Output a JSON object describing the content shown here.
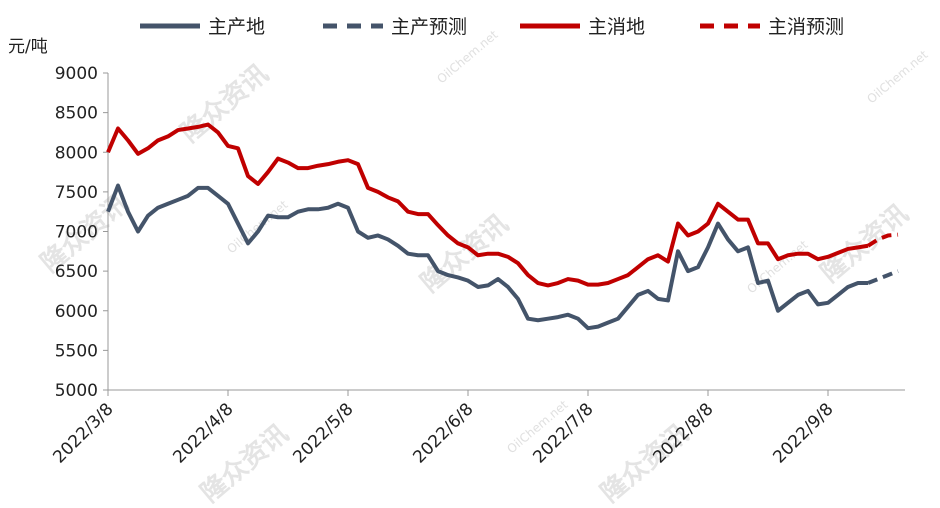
{
  "chart_data": {
    "type": "line",
    "y_label": "元/吨",
    "watermark": [
      "隆众资讯",
      "OilChem.net"
    ],
    "categories": [
      "2022/3/8",
      null,
      null,
      null,
      null,
      null,
      null,
      null,
      null,
      null,
      null,
      null,
      "2022/4/8",
      null,
      null,
      null,
      null,
      null,
      null,
      null,
      null,
      null,
      null,
      null,
      "2022/5/8",
      null,
      null,
      null,
      null,
      null,
      null,
      null,
      null,
      null,
      null,
      null,
      "2022/6/8",
      null,
      null,
      null,
      null,
      null,
      null,
      null,
      null,
      null,
      null,
      null,
      "2022/7/8",
      null,
      null,
      null,
      null,
      null,
      null,
      null,
      null,
      null,
      null,
      null,
      "2022/8/8",
      null,
      null,
      null,
      null,
      null,
      null,
      null,
      null,
      null,
      null,
      null,
      "2022/9/8",
      null,
      null,
      null,
      null,
      null,
      null,
      null
    ],
    "series": [
      {
        "name": "主产地",
        "color": "#44546a",
        "dashed": false,
        "values": [
          7250,
          7580,
          7250,
          7000,
          7200,
          7300,
          7350,
          7400,
          7450,
          7550,
          7550,
          7450,
          7350,
          7100,
          6850,
          7000,
          7200,
          7180,
          7180,
          7250,
          7280,
          7280,
          7300,
          7350,
          7300,
          7000,
          6920,
          6950,
          6900,
          6820,
          6720,
          6700,
          6700,
          6500,
          6450,
          6420,
          6380,
          6300,
          6320,
          6400,
          6300,
          6150,
          5900,
          5880,
          5900,
          5920,
          5950,
          5900,
          5780,
          5800,
          5850,
          5900,
          6050,
          6200,
          6250,
          6150,
          6130,
          6750,
          6500,
          6550,
          6800,
          7100,
          6900,
          6750,
          6800,
          6350,
          6380,
          6000,
          6100,
          6200,
          6250,
          6080,
          6100,
          6200,
          6300,
          6350,
          6350,
          null,
          null,
          null
        ]
      },
      {
        "name": "主产预测",
        "color": "#44546a",
        "dashed": true,
        "values": [
          null,
          null,
          null,
          null,
          null,
          null,
          null,
          null,
          null,
          null,
          null,
          null,
          null,
          null,
          null,
          null,
          null,
          null,
          null,
          null,
          null,
          null,
          null,
          null,
          null,
          null,
          null,
          null,
          null,
          null,
          null,
          null,
          null,
          null,
          null,
          null,
          null,
          null,
          null,
          null,
          null,
          null,
          null,
          null,
          null,
          null,
          null,
          null,
          null,
          null,
          null,
          null,
          null,
          null,
          null,
          null,
          null,
          null,
          null,
          null,
          null,
          null,
          null,
          null,
          null,
          null,
          null,
          null,
          null,
          null,
          null,
          null,
          null,
          null,
          null,
          null,
          6350,
          6400,
          6450,
          6500
        ]
      },
      {
        "name": "主消地",
        "color": "#c00000",
        "dashed": false,
        "values": [
          8000,
          8300,
          8150,
          7980,
          8050,
          8150,
          8200,
          8280,
          8300,
          8320,
          8350,
          8250,
          8080,
          8050,
          7700,
          7600,
          7750,
          7920,
          7870,
          7800,
          7800,
          7830,
          7850,
          7880,
          7900,
          7850,
          7550,
          7500,
          7430,
          7380,
          7250,
          7220,
          7220,
          7080,
          6950,
          6850,
          6800,
          6700,
          6720,
          6720,
          6680,
          6600,
          6450,
          6350,
          6320,
          6350,
          6400,
          6380,
          6330,
          6330,
          6350,
          6400,
          6450,
          6550,
          6650,
          6700,
          6620,
          7100,
          6950,
          7000,
          7100,
          7350,
          7250,
          7150,
          7150,
          6850,
          6850,
          6650,
          6700,
          6720,
          6720,
          6650,
          6680,
          6730,
          6780,
          6800,
          6820,
          null,
          null,
          null
        ]
      },
      {
        "name": "主消预测",
        "color": "#c00000",
        "dashed": true,
        "values": [
          null,
          null,
          null,
          null,
          null,
          null,
          null,
          null,
          null,
          null,
          null,
          null,
          null,
          null,
          null,
          null,
          null,
          null,
          null,
          null,
          null,
          null,
          null,
          null,
          null,
          null,
          null,
          null,
          null,
          null,
          null,
          null,
          null,
          null,
          null,
          null,
          null,
          null,
          null,
          null,
          null,
          null,
          null,
          null,
          null,
          null,
          null,
          null,
          null,
          null,
          null,
          null,
          null,
          null,
          null,
          null,
          null,
          null,
          null,
          null,
          null,
          null,
          null,
          null,
          null,
          null,
          null,
          null,
          null,
          null,
          null,
          null,
          null,
          null,
          null,
          null,
          6820,
          6900,
          6950,
          6960
        ]
      }
    ],
    "ylim": [
      5000,
      9000
    ],
    "yticks": [
      5000,
      5500,
      6000,
      6500,
      7000,
      7500,
      8000,
      8500,
      9000
    ],
    "grid": false
  }
}
